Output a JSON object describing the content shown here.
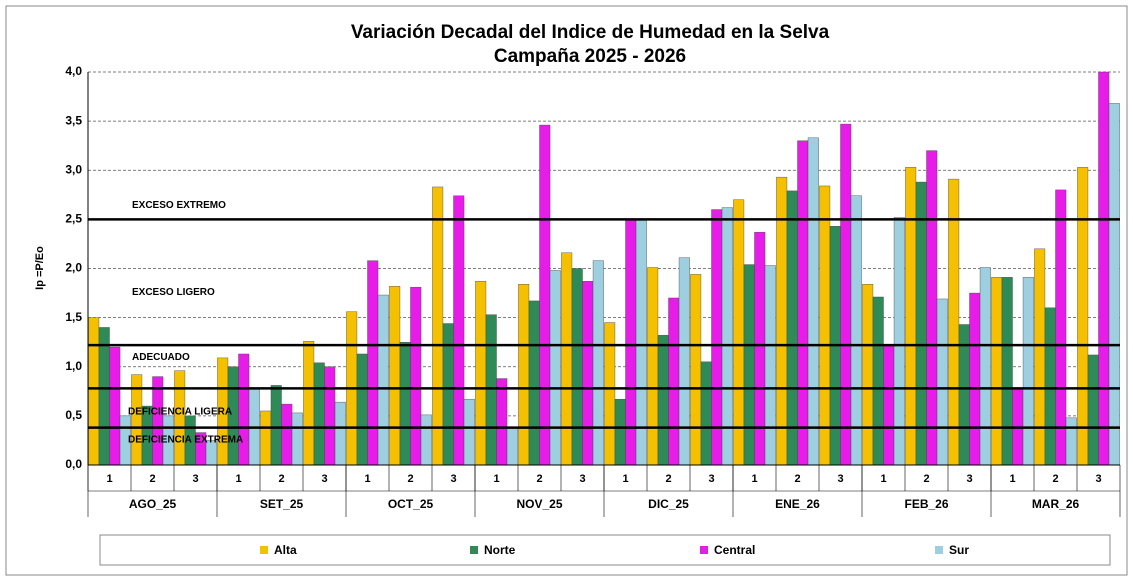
{
  "chart_data": {
    "type": "bar",
    "title": "Variación Decadal del Indice de Humedad en la Selva",
    "subtitle": "Campaña 2025 - 2026",
    "y_label": "Ip =P/Eo",
    "categories": [
      "1",
      "2",
      "3",
      "1",
      "2",
      "3",
      "1",
      "2",
      "3",
      "1",
      "2",
      "3",
      "1",
      "2",
      "3",
      "1",
      "2",
      "3",
      "1",
      "2",
      "3",
      "1",
      "2",
      "3"
    ],
    "groups": [
      "AGO_25",
      "SET_25",
      "OCT_25",
      "NOV_25",
      "DIC_25",
      "ENE_26",
      "FEB_26",
      "MAR_26"
    ],
    "series": [
      {
        "name": "Alta",
        "color": "#f5c000",
        "values": [
          1.5,
          0.92,
          0.96,
          1.09,
          0.55,
          1.26,
          1.56,
          1.82,
          2.83,
          1.87,
          1.84,
          2.16,
          1.45,
          2.01,
          1.94,
          2.7,
          2.93,
          2.84,
          1.84,
          3.03,
          2.91,
          1.91,
          2.2,
          3.03
        ]
      },
      {
        "name": "Norte",
        "color": "#2e8b57",
        "values": [
          1.4,
          0.6,
          0.5,
          1.0,
          0.81,
          1.04,
          1.13,
          1.25,
          1.44,
          1.53,
          1.67,
          2.0,
          0.67,
          1.32,
          1.05,
          2.04,
          2.79,
          2.43,
          1.71,
          2.88,
          1.43,
          1.91,
          1.6,
          1.12
        ]
      },
      {
        "name": "Central",
        "color": "#e81ce8",
        "values": [
          1.2,
          0.9,
          0.33,
          1.13,
          0.62,
          1.0,
          2.08,
          1.81,
          2.74,
          0.88,
          3.46,
          1.87,
          2.49,
          1.7,
          2.6,
          2.37,
          3.3,
          3.47,
          1.22,
          3.2,
          1.75,
          0.78,
          2.8,
          4.0
        ]
      },
      {
        "name": "Sur",
        "color": "#9ecfe0",
        "values": [
          0.5,
          0.5,
          0.25,
          0.77,
          0.53,
          0.64,
          1.73,
          0.51,
          0.67,
          0.38,
          1.98,
          2.08,
          2.49,
          2.11,
          2.62,
          2.03,
          3.33,
          2.74,
          2.52,
          1.69,
          2.01,
          1.91,
          0.48,
          3.68
        ]
      }
    ],
    "ylim": [
      0,
      4
    ],
    "yticks": [
      {
        "value": 0,
        "label": "0,0"
      },
      {
        "value": 0.5,
        "label": "0,5"
      },
      {
        "value": 1,
        "label": "1,0"
      },
      {
        "value": 1.5,
        "label": "1,5"
      },
      {
        "value": 2,
        "label": "2,0"
      },
      {
        "value": 2.5,
        "label": "2,5"
      },
      {
        "value": 3,
        "label": "3,0"
      },
      {
        "value": 3.5,
        "label": "3,5"
      },
      {
        "value": 4,
        "label": "4,0"
      }
    ],
    "grid": true,
    "thresholds": [
      2.5,
      1.22,
      0.78,
      0.38
    ],
    "zone_labels": [
      "EXCESO EXTREMO",
      "EXCESO LIGERO",
      "ADECUADO",
      "DEFICIENCIA LIGERA",
      "DEFICIENCIA EXTREMA"
    ]
  }
}
